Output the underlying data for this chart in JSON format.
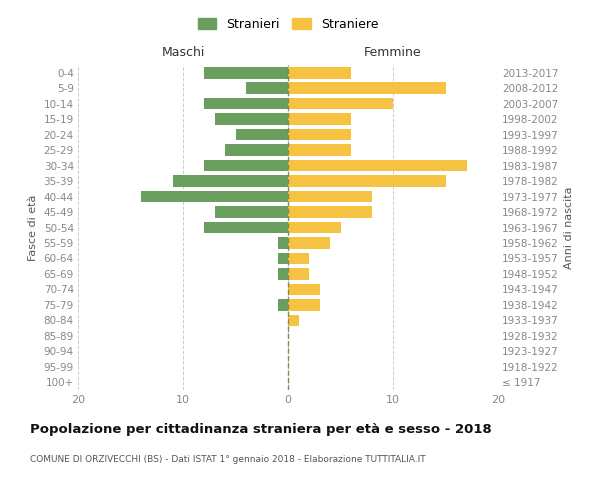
{
  "age_groups": [
    "100+",
    "95-99",
    "90-94",
    "85-89",
    "80-84",
    "75-79",
    "70-74",
    "65-69",
    "60-64",
    "55-59",
    "50-54",
    "45-49",
    "40-44",
    "35-39",
    "30-34",
    "25-29",
    "20-24",
    "15-19",
    "10-14",
    "5-9",
    "0-4"
  ],
  "birth_years": [
    "≤ 1917",
    "1918-1922",
    "1923-1927",
    "1928-1932",
    "1933-1937",
    "1938-1942",
    "1943-1947",
    "1948-1952",
    "1953-1957",
    "1958-1962",
    "1963-1967",
    "1968-1972",
    "1973-1977",
    "1978-1982",
    "1983-1987",
    "1988-1992",
    "1993-1997",
    "1998-2002",
    "2003-2007",
    "2008-2012",
    "2013-2017"
  ],
  "maschi": [
    0,
    0,
    0,
    0,
    0,
    1,
    0,
    1,
    1,
    1,
    8,
    7,
    14,
    11,
    8,
    6,
    5,
    7,
    8,
    4,
    8
  ],
  "femmine": [
    0,
    0,
    0,
    0,
    1,
    3,
    3,
    2,
    2,
    4,
    5,
    8,
    8,
    15,
    17,
    6,
    6,
    6,
    10,
    15,
    6
  ],
  "maschi_color": "#6a9e5e",
  "femmine_color": "#f5c242",
  "background_color": "#ffffff",
  "grid_color": "#cccccc",
  "title": "Popolazione per cittadinanza straniera per età e sesso - 2018",
  "subtitle": "COMUNE DI ORZIVECCHI (BS) - Dati ISTAT 1° gennaio 2018 - Elaborazione TUTTITALIA.IT",
  "xlabel_left": "Maschi",
  "xlabel_right": "Femmine",
  "ylabel_left": "Fasce di età",
  "ylabel_right": "Anni di nascita",
  "legend_maschi": "Stranieri",
  "legend_femmine": "Straniere",
  "xlim": 20,
  "bar_height": 0.75
}
